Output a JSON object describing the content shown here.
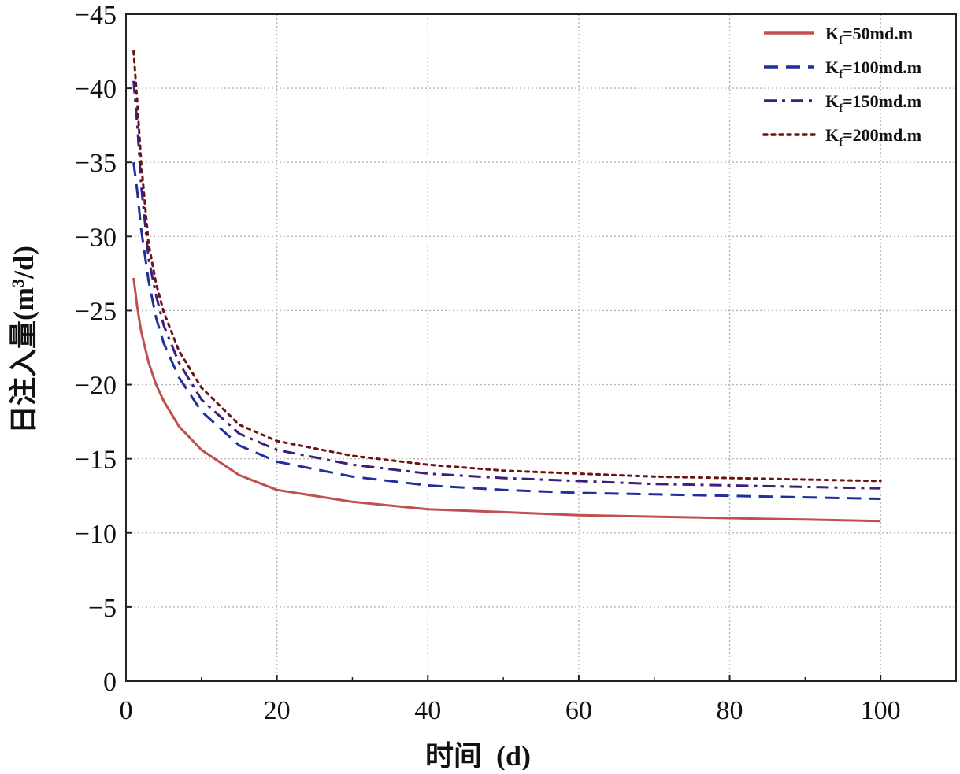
{
  "chart_data": {
    "type": "line",
    "xlabel_main": "时间",
    "xlabel_unit": "(d)",
    "ylabel_main": "日注入量",
    "ylabel_unit_pre": "(m",
    "ylabel_unit_sup": "3",
    "ylabel_unit_post": "/d)",
    "xlim": [
      0,
      110
    ],
    "ylim": [
      0,
      -45
    ],
    "x_ticks": [
      0,
      20,
      40,
      60,
      80,
      100
    ],
    "x_tick_labels": [
      "0",
      "20",
      "40",
      "60",
      "80",
      "100"
    ],
    "y_ticks": [
      0,
      -5,
      -10,
      -15,
      -20,
      -25,
      -30,
      -35,
      -40,
      -45
    ],
    "y_tick_labels": [
      "0",
      "−5",
      "−10",
      "−15",
      "−20",
      "−25",
      "−30",
      "−35",
      "−40",
      "−45"
    ],
    "grid": true,
    "legend_position": "top-right",
    "x": [
      1,
      1.5,
      2,
      3,
      4,
      5,
      7,
      10,
      15,
      20,
      30,
      40,
      50,
      60,
      70,
      80,
      90,
      100
    ],
    "series": [
      {
        "name_main": "K",
        "name_sub": "f",
        "name_rest": "=50md.m",
        "color": "#c0504d",
        "style": "solid",
        "values": [
          -27.2,
          -25.2,
          -23.6,
          -21.5,
          -20.0,
          -18.9,
          -17.2,
          -15.6,
          -13.9,
          -12.9,
          -12.1,
          -11.6,
          -11.4,
          -11.2,
          -11.1,
          -11.0,
          -10.9,
          -10.8
        ]
      },
      {
        "name_main": "K",
        "name_sub": "f",
        "name_rest": "=100md.m",
        "color": "#1f2f9c",
        "style": "dashed",
        "values": [
          -35.0,
          -33.0,
          -30.5,
          -27.0,
          -24.5,
          -22.8,
          -20.5,
          -18.2,
          -15.9,
          -14.8,
          -13.8,
          -13.2,
          -12.9,
          -12.7,
          -12.6,
          -12.5,
          -12.4,
          -12.3
        ]
      },
      {
        "name_main": "K",
        "name_sub": "f",
        "name_rest": "=150md.m",
        "color": "#3b1f7a",
        "style": "dashdot",
        "values": [
          -40.5,
          -37.5,
          -33.5,
          -28.5,
          -26.0,
          -24.0,
          -21.5,
          -19.0,
          -16.7,
          -15.6,
          -14.6,
          -14.0,
          -13.7,
          -13.5,
          -13.3,
          -13.2,
          -13.1,
          -13.0
        ]
      },
      {
        "name_main": "K",
        "name_sub": "f",
        "name_rest": "=200md.m",
        "color": "#6b1414",
        "style": "dotted",
        "values": [
          -42.5,
          -39.0,
          -35.0,
          -29.5,
          -26.8,
          -24.9,
          -22.3,
          -19.8,
          -17.3,
          -16.2,
          -15.2,
          -14.6,
          -14.2,
          -14.0,
          -13.8,
          -13.7,
          -13.6,
          -13.5
        ]
      }
    ]
  }
}
